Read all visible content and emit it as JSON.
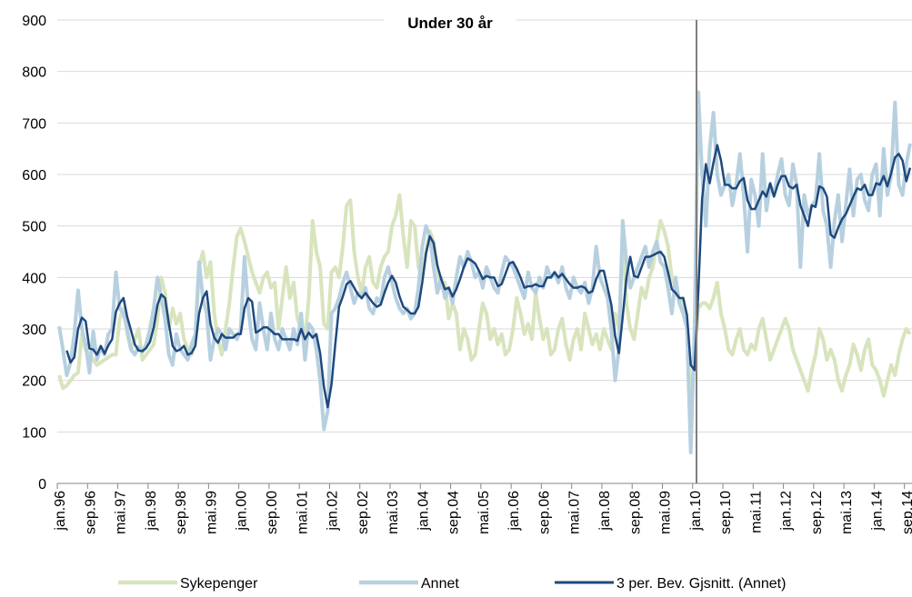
{
  "chart_data": {
    "type": "line",
    "title": "Under 30 år",
    "categories": [
      "jan.96",
      null,
      null,
      null,
      null,
      null,
      null,
      null,
      "sep.96",
      null,
      null,
      null,
      null,
      null,
      null,
      null,
      "mai.97",
      null,
      null,
      null,
      null,
      null,
      null,
      null,
      "jan.98",
      null,
      null,
      null,
      null,
      null,
      null,
      null,
      "sep.98",
      null,
      null,
      null,
      null,
      null,
      null,
      null,
      "mai.99",
      null,
      null,
      null,
      null,
      null,
      null,
      null,
      "jan.00",
      null,
      null,
      null,
      null,
      null,
      null,
      null,
      "sep.00",
      null,
      null,
      null,
      null,
      null,
      null,
      null,
      "mai.01",
      null,
      null,
      null,
      null,
      null,
      null,
      null,
      "jan.02",
      null,
      null,
      null,
      null,
      null,
      null,
      null,
      "sep.02",
      null,
      null,
      null,
      null,
      null,
      null,
      null,
      "mai.03",
      null,
      null,
      null,
      null,
      null,
      null,
      null,
      "jan.04",
      null,
      null,
      null,
      null,
      null,
      null,
      null,
      "sep.04",
      null,
      null,
      null,
      null,
      null,
      null,
      null,
      "mai.05",
      null,
      null,
      null,
      null,
      null,
      null,
      null,
      "jan.06",
      null,
      null,
      null,
      null,
      null,
      null,
      null,
      "sep.06",
      null,
      null,
      null,
      null,
      null,
      null,
      null,
      "mai.07",
      null,
      null,
      null,
      null,
      null,
      null,
      null,
      "jan.08",
      null,
      null,
      null,
      null,
      null,
      null,
      null,
      "sep.08",
      null,
      null,
      null,
      null,
      null,
      null,
      null,
      "mai.09",
      null,
      null,
      null,
      null,
      null,
      null,
      null,
      "jan.10",
      null,
      null,
      null,
      null,
      null,
      null,
      null,
      "sep.10",
      null,
      null,
      null,
      null,
      null,
      null,
      null,
      "mai.11",
      null,
      null,
      null,
      null,
      null,
      null,
      null,
      "jan.12",
      null,
      null,
      null,
      null,
      null,
      null,
      null,
      "sep.12",
      null,
      null,
      null,
      null,
      null,
      null,
      null,
      "mai.13",
      null,
      null,
      null,
      null,
      null,
      null,
      null,
      "jan.14",
      null,
      null,
      null,
      null,
      null,
      null,
      null,
      "sep.14",
      null
    ],
    "series": [
      {
        "name": "Sykepenger",
        "color": "#d7e4bd",
        "width": 4,
        "values": [
          210,
          185,
          190,
          200,
          210,
          215,
          290,
          260,
          250,
          240,
          230,
          235,
          240,
          245,
          250,
          250,
          320,
          340,
          290,
          260,
          280,
          300,
          240,
          250,
          260,
          270,
          320,
          400,
          370,
          300,
          340,
          310,
          330,
          280,
          260,
          250,
          280,
          420,
          450,
          400,
          430,
          330,
          280,
          250,
          300,
          350,
          420,
          480,
          495,
          470,
          440,
          410,
          390,
          370,
          400,
          410,
          380,
          390,
          300,
          360,
          420,
          360,
          390,
          320,
          300,
          280,
          360,
          510,
          450,
          420,
          310,
          300,
          410,
          420,
          400,
          460,
          540,
          550,
          450,
          400,
          370,
          420,
          440,
          390,
          380,
          420,
          440,
          450,
          500,
          520,
          560,
          480,
          420,
          510,
          500,
          420,
          400,
          450,
          490,
          470,
          420,
          380,
          390,
          320,
          350,
          330,
          260,
          300,
          280,
          240,
          250,
          300,
          350,
          330,
          280,
          300,
          270,
          290,
          250,
          260,
          300,
          360,
          330,
          290,
          310,
          280,
          370,
          320,
          280,
          300,
          250,
          260,
          300,
          320,
          270,
          240,
          280,
          300,
          260,
          330,
          300,
          270,
          290,
          260,
          300,
          280,
          260,
          330,
          300,
          480,
          350,
          300,
          280,
          330,
          380,
          360,
          400,
          420,
          470,
          510,
          490,
          460,
          400,
          380,
          350,
          360,
          300,
          150,
          250,
          340,
          350,
          350,
          340,
          360,
          390,
          330,
          300,
          260,
          250,
          280,
          300,
          260,
          250,
          270,
          260,
          300,
          320,
          280,
          240,
          260,
          280,
          300,
          320,
          300,
          260,
          240,
          220,
          200,
          180,
          220,
          250,
          300,
          280,
          240,
          260,
          240,
          200,
          180,
          210,
          230,
          270,
          250,
          220,
          260,
          280,
          230,
          220,
          200,
          170,
          200,
          230,
          210,
          250,
          280,
          300,
          290
        ]
      },
      {
        "name": "Annet",
        "color": "#b7d0e0",
        "width": 4,
        "values": [
          305,
          260,
          210,
          235,
          290,
          375,
          300,
          270,
          215,
          295,
          240,
          265,
          250,
          290,
          300,
          410,
          340,
          330,
          300,
          260,
          250,
          265,
          255,
          270,
          300,
          340,
          400,
          360,
          320,
          250,
          230,
          290,
          260,
          250,
          240,
          270,
          290,
          430,
          360,
          330,
          240,
          280,
          300,
          290,
          260,
          300,
          290,
          280,
          300,
          440,
          340,
          280,
          260,
          350,
          300,
          260,
          330,
          280,
          260,
          300,
          280,
          260,
          300,
          270,
          330,
          240,
          310,
          300,
          260,
          200,
          105,
          140,
          330,
          340,
          360,
          390,
          410,
          380,
          350,
          370,
          360,
          380,
          340,
          330,
          360,
          350,
          400,
          420,
          390,
          360,
          340,
          330,
          340,
          320,
          330,
          380,
          460,
          500,
          480,
          420,
          370,
          400,
          360,
          380,
          350,
          400,
          440,
          420,
          450,
          430,
          400,
          410,
          380,
          420,
          400,
          380,
          370,
          410,
          440,
          430,
          420,
          400,
          380,
          360,
          410,
          380,
          370,
          400,
          380,
          420,
          400,
          410,
          390,
          420,
          380,
          360,
          400,
          380,
          370,
          390,
          350,
          380,
          460,
          400,
          380,
          360,
          300,
          200,
          260,
          510,
          430,
          380,
          400,
          420,
          440,
          460,
          420,
          450,
          470,
          430,
          420,
          380,
          330,
          400,
          350,
          330,
          300,
          60,
          300,
          760,
          600,
          500,
          650,
          720,
          600,
          560,
          580,
          600,
          540,
          580,
          640,
          560,
          450,
          590,
          560,
          500,
          640,
          530,
          580,
          560,
          600,
          630,
          560,
          540,
          620,
          580,
          420,
          560,
          520,
          540,
          550,
          640,
          530,
          500,
          420,
          510,
          560,
          470,
          540,
          610,
          520,
          590,
          600,
          550,
          530,
          600,
          620,
          520,
          650,
          560,
          600,
          740,
          580,
          560,
          620,
          660
        ]
      },
      {
        "name": "3 per. Bev. Gjsnitt. (Annet)",
        "color": "#1f497d",
        "width": 2.5,
        "values": [
          null,
          null,
          258,
          235,
          245,
          300,
          322,
          315,
          262,
          260,
          250,
          267,
          252,
          268,
          280,
          333,
          350,
          360,
          323,
          297,
          270,
          258,
          257,
          263,
          275,
          303,
          347,
          367,
          360,
          310,
          267,
          257,
          260,
          267,
          250,
          253,
          267,
          330,
          360,
          373,
          310,
          283,
          273,
          290,
          283,
          283,
          283,
          290,
          290,
          340,
          360,
          353,
          293,
          297,
          303,
          303,
          297,
          290,
          290,
          280,
          280,
          280,
          280,
          277,
          300,
          280,
          293,
          283,
          290,
          253,
          188,
          148,
          192,
          270,
          343,
          363,
          387,
          393,
          380,
          367,
          360,
          370,
          360,
          350,
          343,
          347,
          370,
          390,
          403,
          390,
          363,
          343,
          337,
          330,
          330,
          343,
          390,
          447,
          480,
          467,
          423,
          397,
          377,
          380,
          363,
          377,
          397,
          420,
          437,
          433,
          427,
          413,
          397,
          403,
          400,
          400,
          383,
          387,
          407,
          427,
          430,
          417,
          400,
          380,
          383,
          383,
          387,
          383,
          383,
          400,
          400,
          410,
          400,
          407,
          397,
          387,
          380,
          380,
          383,
          380,
          370,
          373,
          397,
          413,
          413,
          380,
          347,
          287,
          253,
          323,
          400,
          440,
          403,
          400,
          420,
          440,
          440,
          443,
          447,
          450,
          440,
          410,
          377,
          370,
          360,
          360,
          327,
          230,
          220,
          373,
          553,
          620,
          583,
          623,
          657,
          627,
          580,
          580,
          573,
          573,
          587,
          593,
          550,
          533,
          533,
          550,
          567,
          557,
          583,
          557,
          580,
          597,
          597,
          577,
          573,
          580,
          540,
          520,
          500,
          540,
          537,
          577,
          573,
          557,
          483,
          477,
          497,
          513,
          523,
          540,
          557,
          573,
          570,
          580,
          560,
          560,
          583,
          580,
          597,
          577,
          603,
          633,
          640,
          627,
          587,
          613
        ]
      }
    ],
    "ylim": [
      0,
      900
    ],
    "yticks": [
      0,
      100,
      200,
      300,
      400,
      500,
      600,
      700,
      800,
      900
    ],
    "grid": true,
    "legend": "bottom"
  }
}
